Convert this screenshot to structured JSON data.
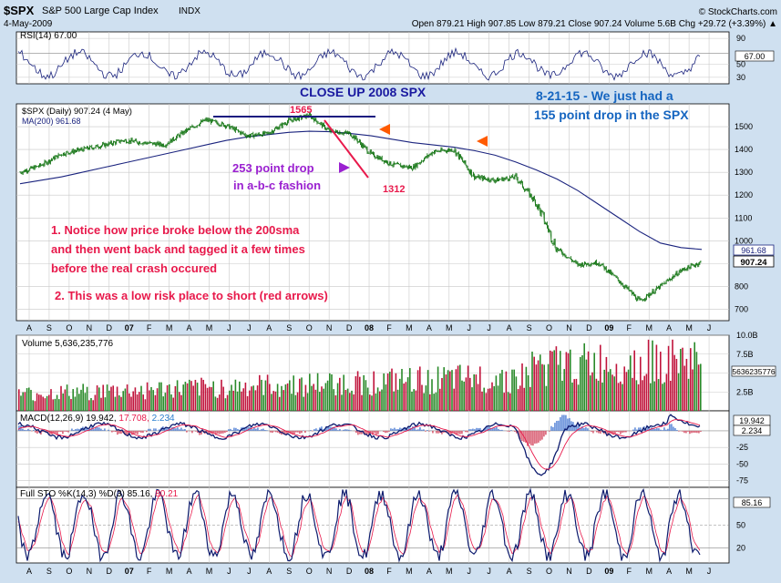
{
  "header": {
    "symbol": "$SPX",
    "name": "S&P 500 Large Cap Index",
    "exchange": "INDX",
    "date": "4-May-2009",
    "watermark": "© StockCharts.com",
    "ohlc": "Open 879.21  High 907.85  Low 879.21  Close 907.24  Volume 5.6B  Chg +29.72 (+3.39%) ▲"
  },
  "annotations": {
    "title": "CLOSE UP 2008 SPX",
    "note_line1": "8-21-15 -  We just had a",
    "note_line2": "155 point drop in the SPX",
    "peak": "1565",
    "low": "1312",
    "drop_line1": "253 point drop",
    "drop_line2": "in a-b-c fashion",
    "note1_line1": "1.  Notice how price broke below the 200sma",
    "note1_line2": "and then went back and tagged it a few times",
    "note1_line3": "before the real crash occured",
    "note2": "2.  This was a low risk place to short  (red arrows)"
  },
  "panels": {
    "rsi": {
      "label": "RSI(14) 67.00",
      "value_box": "67.00"
    },
    "price": {
      "label1": "$SPX (Daily) 907.24 (4 May)",
      "label2": "MA(200) 961.68",
      "ma_box": "961.68",
      "price_box": "907.24"
    },
    "volume": {
      "label": "Volume 5,636,235,776",
      "value_box": "5636235776"
    },
    "macd": {
      "label_a": "MACD(12,26,9) 19.942,",
      "label_b": "17.708,",
      "label_c": "2.234",
      "box1": "19.942",
      "box2": "2.234"
    },
    "sto": {
      "label_a": "Full STO %K(14,3) %D(3) 85.16,",
      "label_b": "80.21",
      "box": "85.16"
    }
  },
  "chart_data": {
    "type": "line",
    "x_months": [
      "A",
      "S",
      "O",
      "N",
      "D",
      "07",
      "F",
      "M",
      "A",
      "M",
      "J",
      "J",
      "A",
      "S",
      "O",
      "N",
      "D",
      "08",
      "F",
      "M",
      "A",
      "M",
      "J",
      "J",
      "A",
      "S",
      "O",
      "N",
      "D",
      "09",
      "F",
      "M",
      "A",
      "M",
      "J"
    ],
    "price": {
      "y_ticks": [
        700,
        800,
        900,
        1000,
        1100,
        1200,
        1300,
        1400,
        1500
      ],
      "ylim": [
        650,
        1600
      ],
      "monthly_close": [
        1300,
        1330,
        1380,
        1400,
        1418,
        1440,
        1430,
        1420,
        1480,
        1530,
        1505,
        1460,
        1470,
        1525,
        1550,
        1480,
        1470,
        1380,
        1335,
        1320,
        1390,
        1400,
        1280,
        1265,
        1280,
        1165,
        965,
        895,
        905,
        825,
        735,
        800,
        870,
        907
      ],
      "ma200": [
        1250,
        1265,
        1280,
        1300,
        1320,
        1340,
        1360,
        1380,
        1400,
        1420,
        1440,
        1455,
        1465,
        1475,
        1480,
        1478,
        1470,
        1460,
        1445,
        1430,
        1420,
        1410,
        1395,
        1375,
        1345,
        1310,
        1270,
        1220,
        1160,
        1100,
        1040,
        990,
        970,
        962
      ]
    },
    "rsi": {
      "y_ticks": [
        90,
        67,
        50,
        30
      ],
      "ylim": [
        20,
        100
      ],
      "current": 67.0
    },
    "volume": {
      "y_ticks": [
        "10.0B",
        "7.5B",
        "5.0B",
        "2.5B"
      ],
      "ylim_billions": [
        0,
        10
      ],
      "current_billions": 5.6
    },
    "macd": {
      "y_ticks": [
        -25,
        -50,
        -75
      ],
      "ylim": [
        -85,
        30
      ],
      "macd": 19.942,
      "signal": 17.708,
      "histogram": 2.234
    },
    "sto": {
      "y_ticks": [
        85.16,
        50,
        20
      ],
      "ylim": [
        0,
        100
      ],
      "k": 85.16,
      "d": 80.21
    }
  },
  "colors": {
    "background": "#cfe0f0",
    "price": "#006400",
    "ma": "#1a237e",
    "annotation_red": "#e8194b",
    "annotation_blue": "#1565c0",
    "annotation_purple": "#9a20d0",
    "arrow_orange": "#ff5a00"
  }
}
